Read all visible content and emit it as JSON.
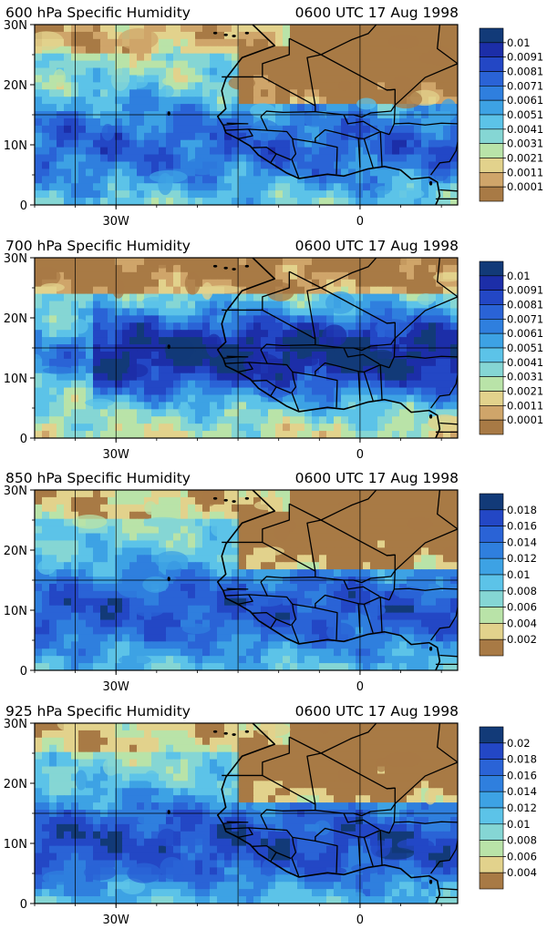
{
  "panels": [
    {
      "title": "600 hPa Specific Humidity",
      "time": "0600 UTC 17 Aug 1998",
      "lat_labels": [
        "30N",
        "20N",
        "10N",
        "0"
      ],
      "lon_labels": [
        "30W",
        "0"
      ],
      "colorbar_labels": [
        "0.01",
        "0.0091",
        "0.0081",
        "0.0071",
        "0.0061",
        "0.0051",
        "0.0041",
        "0.0031",
        "0.0021",
        "0.0011",
        "0.0001"
      ],
      "colorbar_colors": [
        "#123a78",
        "#1c2ea8",
        "#2347c5",
        "#2a63d6",
        "#2f7fde",
        "#3da2e4",
        "#5cc3e8",
        "#85d6d4",
        "#b9e3a8",
        "#e2d28c",
        "#cfa56a",
        "#a87a45"
      ],
      "moisture_level": 0.45,
      "wet_ocean": false
    },
    {
      "title": "700 hPa Specific Humidity",
      "time": "0600 UTC 17 Aug 1998",
      "lat_labels": [
        "30N",
        "20N",
        "10N",
        "0"
      ],
      "lon_labels": [
        "30W",
        "0"
      ],
      "colorbar_labels": [
        "0.01",
        "0.0091",
        "0.0081",
        "0.0071",
        "0.0061",
        "0.0051",
        "0.0041",
        "0.0031",
        "0.0021",
        "0.0011",
        "0.0001"
      ],
      "colorbar_colors": [
        "#123a78",
        "#1c2ea8",
        "#2347c5",
        "#2a63d6",
        "#2f7fde",
        "#3da2e4",
        "#5cc3e8",
        "#85d6d4",
        "#b9e3a8",
        "#e2d28c",
        "#cfa56a",
        "#a87a45"
      ],
      "moisture_level": 0.8,
      "wet_ocean": true
    },
    {
      "title": "850 hPa Specific Humidity",
      "time": "0600 UTC 17 Aug 1998",
      "lat_labels": [
        "30N",
        "20N",
        "10N",
        "0"
      ],
      "lon_labels": [
        "30W",
        "0"
      ],
      "colorbar_labels": [
        "0.018",
        "0.016",
        "0.014",
        "0.012",
        "0.01",
        "0.008",
        "0.006",
        "0.004",
        "0.002"
      ],
      "colorbar_colors": [
        "#123a78",
        "#2347c5",
        "#2a63d6",
        "#2f7fde",
        "#3da2e4",
        "#5cc3e8",
        "#85d6d4",
        "#b9e3a8",
        "#e2d28c",
        "#a87a45"
      ],
      "moisture_level": 0.55,
      "wet_ocean": false
    },
    {
      "title": "925 hPa Specific Humidity",
      "time": "0600 UTC 17 Aug 1998",
      "lat_labels": [
        "30N",
        "20N",
        "10N",
        "0"
      ],
      "lon_labels": [
        "30W",
        "0"
      ],
      "colorbar_labels": [
        "0.02",
        "0.018",
        "0.016",
        "0.014",
        "0.012",
        "0.01",
        "0.008",
        "0.006",
        "0.004"
      ],
      "colorbar_colors": [
        "#123a78",
        "#2347c5",
        "#2a63d6",
        "#2f7fde",
        "#3da2e4",
        "#5cc3e8",
        "#85d6d4",
        "#b9e3a8",
        "#e2d28c",
        "#a87a45"
      ],
      "moisture_level": 0.6,
      "wet_ocean": false
    }
  ]
}
